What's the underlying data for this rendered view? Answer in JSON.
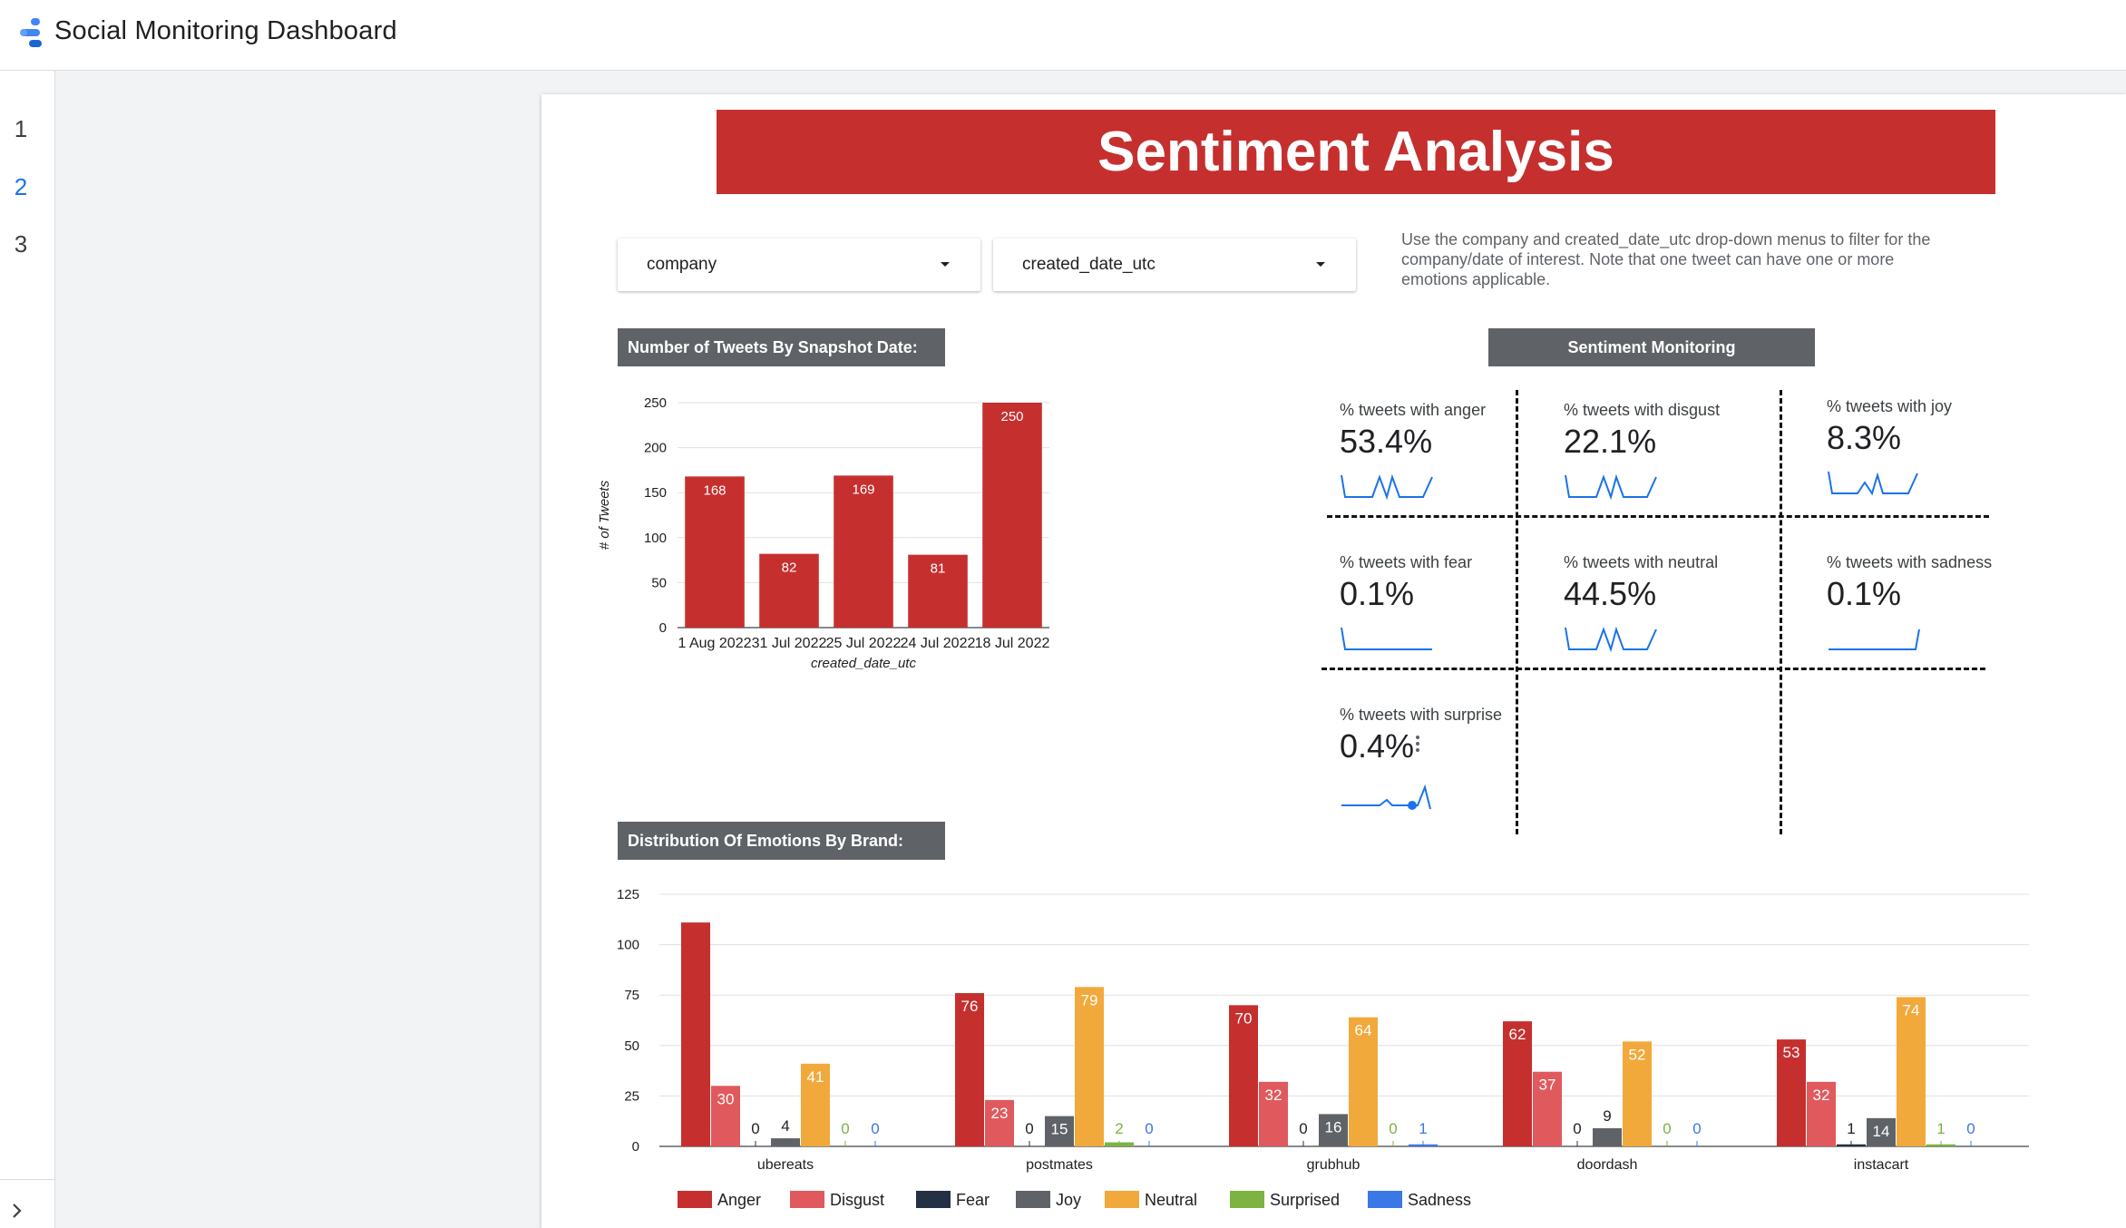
{
  "app": {
    "title": "Social Monitoring Dashboard"
  },
  "sidebar": {
    "pages": [
      "1",
      "2",
      "3"
    ],
    "active_page": "2",
    "expand_icon": "chevron-right-icon"
  },
  "report": {
    "banner_title": "Sentiment Analysis",
    "filters": {
      "company_label": "company",
      "date_label": "created_date_utc"
    },
    "note": "Use the company and created_date_utc drop-down menus to filter for the company/date of interest. Note that one tweet can have one or more emotions applicable.",
    "tweets_section_label": "Number of Tweets By Snapshot Date:",
    "sentiment_section_label": "Sentiment Monitoring",
    "emotions_section_label": "Distribution Of Emotions By Brand:",
    "scorecards": [
      {
        "label": "% tweets with anger",
        "value": "53.4%"
      },
      {
        "label": "% tweets with disgust",
        "value": "22.1%"
      },
      {
        "label": "% tweets with joy",
        "value": "8.3%"
      },
      {
        "label": "% tweets with fear",
        "value": "0.1%"
      },
      {
        "label": "% tweets with neutral",
        "value": "44.5%"
      },
      {
        "label": "% tweets with sadness",
        "value": "0.1%"
      },
      {
        "label": "% tweets with surprise",
        "value": "0.4%"
      }
    ],
    "accent_color": "#c5302f"
  },
  "chart_data": [
    {
      "type": "bar",
      "title": "",
      "categories": [
        "1 Aug 2022",
        "31 Jul 2022",
        "25 Jul 2022",
        "24 Jul 2022",
        "18 Jul 2022"
      ],
      "values": [
        168,
        82,
        169,
        81,
        250
      ],
      "xlabel": "created_date_utc",
      "ylabel": "# of Tweets",
      "ylim": [
        0,
        250
      ],
      "yticks": [
        "0",
        "50",
        "100",
        "150",
        "200",
        "250"
      ],
      "color": "#c5302f",
      "grid": true
    },
    {
      "type": "bar",
      "title": "",
      "categories": [
        "ubereats",
        "postmates",
        "grubhub",
        "doordash",
        "instacart"
      ],
      "ylim": [
        0,
        125
      ],
      "yticks": [
        "0",
        "25",
        "50",
        "75",
        "100",
        "125"
      ],
      "grid": true,
      "legend_position": "bottom",
      "series": [
        {
          "name": "Anger",
          "color": "#c5302f",
          "values": [
            111,
            76,
            70,
            62,
            53
          ],
          "labels": [
            "",
            "76",
            "70",
            "62",
            "53"
          ]
        },
        {
          "name": "Disgust",
          "color": "#e05a5d",
          "values": [
            30,
            23,
            32,
            37,
            32
          ],
          "labels": [
            "30",
            "23",
            "32",
            "37",
            "32"
          ]
        },
        {
          "name": "Fear",
          "color": "#263044",
          "values": [
            0,
            0,
            0,
            0,
            1
          ],
          "labels": [
            "0",
            "0",
            "0",
            "0",
            "1"
          ]
        },
        {
          "name": "Joy",
          "color": "#5f6368",
          "values": [
            4,
            15,
            16,
            9,
            14
          ],
          "labels": [
            "4",
            "15",
            "16",
            "9",
            "14"
          ]
        },
        {
          "name": "Neutral",
          "color": "#f2a93b",
          "values": [
            41,
            79,
            64,
            52,
            74
          ],
          "labels": [
            "41",
            "79",
            "64",
            "52",
            "74"
          ]
        },
        {
          "name": "Surprised",
          "color": "#7cb342",
          "values": [
            0,
            2,
            0,
            0,
            1
          ],
          "labels": [
            "0",
            "2",
            "0",
            "0",
            "1"
          ]
        },
        {
          "name": "Sadness",
          "color": "#3b78e7",
          "values": [
            0,
            0,
            1,
            0,
            0
          ],
          "labels": [
            "0",
            "0",
            "1",
            "0",
            "0"
          ]
        }
      ]
    }
  ]
}
